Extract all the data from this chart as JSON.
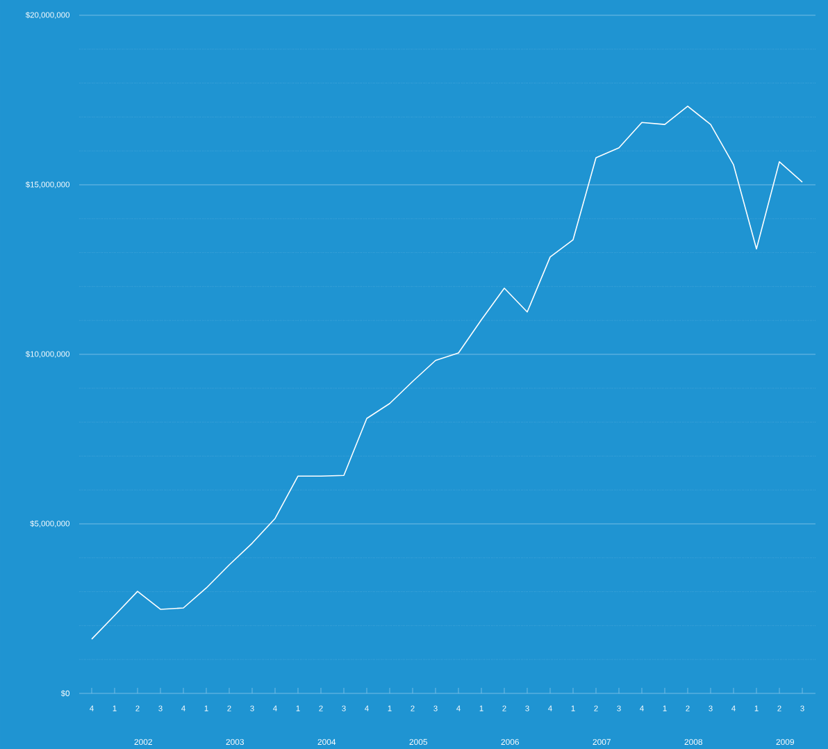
{
  "chart_data": {
    "type": "line",
    "categories": [
      "4",
      "1",
      "2",
      "3",
      "4",
      "1",
      "2",
      "3",
      "4",
      "1",
      "2",
      "3",
      "4",
      "1",
      "2",
      "3",
      "4",
      "1",
      "2",
      "3",
      "4",
      "1",
      "2",
      "3",
      "4",
      "1",
      "2",
      "3",
      "4",
      "1",
      "2",
      "3"
    ],
    "series": [
      {
        "color": "#ffffff",
        "values": [
          1600000,
          2300000,
          3010000,
          2480000,
          2520000,
          3110000,
          3790000,
          4430000,
          5160000,
          6410000,
          6410000,
          6430000,
          8110000,
          8550000,
          9200000,
          9820000,
          10040000,
          11020000,
          11950000,
          11250000,
          12870000,
          13380000,
          15800000,
          16090000,
          16840000,
          16780000,
          17320000,
          16780000,
          15590000,
          13110000,
          15680000,
          15080000
        ]
      }
    ],
    "annotations": [
      "2002",
      "2003",
      "2004",
      "2005",
      "2006",
      "2007",
      "2008",
      "2009"
    ],
    "ylim": [
      0,
      20000000
    ],
    "yticks": [
      {
        "value": 0,
        "label": "$0"
      },
      {
        "value": 1000000,
        "label": null
      },
      {
        "value": 2000000,
        "label": null
      },
      {
        "value": 3000000,
        "label": null
      },
      {
        "value": 4000000,
        "label": null
      },
      {
        "value": 5000000,
        "label": "$5,000,000"
      },
      {
        "value": 6000000,
        "label": null
      },
      {
        "value": 7000000,
        "label": null
      },
      {
        "value": 8000000,
        "label": null
      },
      {
        "value": 9000000,
        "label": null
      },
      {
        "value": 10000000,
        "label": "$10,000,000"
      },
      {
        "value": 11000000,
        "label": null
      },
      {
        "value": 12000000,
        "label": null
      },
      {
        "value": 13000000,
        "label": null
      },
      {
        "value": 14000000,
        "label": null
      },
      {
        "value": 15000000,
        "label": "$15,000,000"
      },
      {
        "value": 16000000,
        "label": null
      },
      {
        "value": 17000000,
        "label": null
      },
      {
        "value": 18000000,
        "label": null
      },
      {
        "value": 19000000,
        "label": null
      },
      {
        "value": 20000000,
        "label": "$20,000,000"
      }
    ],
    "grid": true,
    "marker": "none",
    "line_style": "solid"
  }
}
